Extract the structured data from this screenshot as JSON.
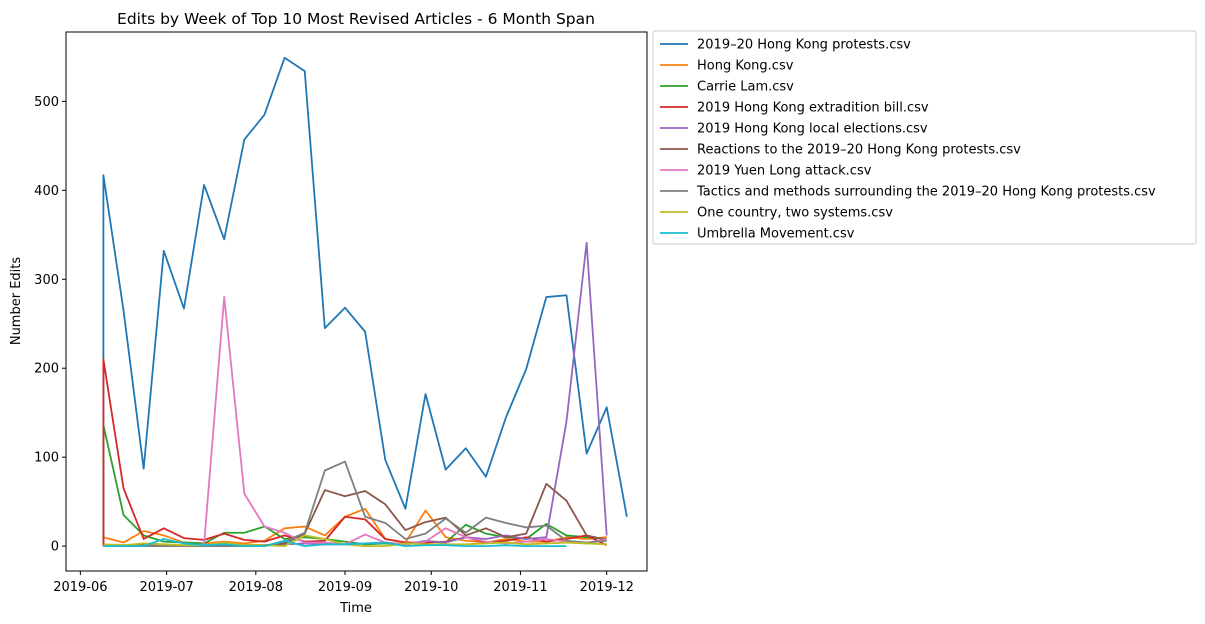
{
  "chart_data": {
    "type": "line",
    "title": "Edits by Week of Top 10 Most Revised Articles - 6 Month Span",
    "xlabel": "Time",
    "ylabel": "Number Edits",
    "xlim": [
      "2019-05-27",
      "2019-12-15"
    ],
    "ylim": [
      -28,
      578
    ],
    "x_ticks": [
      {
        "date": "2019-06-01",
        "label": "2019-06"
      },
      {
        "date": "2019-07-01",
        "label": "2019-07"
      },
      {
        "date": "2019-08-01",
        "label": "2019-08"
      },
      {
        "date": "2019-09-01",
        "label": "2019-09"
      },
      {
        "date": "2019-10-01",
        "label": "2019-10"
      },
      {
        "date": "2019-11-01",
        "label": "2019-11"
      },
      {
        "date": "2019-12-01",
        "label": "2019-12"
      }
    ],
    "y_ticks": [
      0,
      100,
      200,
      300,
      400,
      500
    ],
    "grid": false,
    "legend_position": "outside-right",
    "series": [
      {
        "name": "2019–20 Hong Kong protests.csv",
        "color": "#1f77b4",
        "points": [
          [
            "2019-06-09",
            0
          ],
          [
            "2019-06-09",
            417
          ],
          [
            "2019-06-16",
            265
          ],
          [
            "2019-06-23",
            87
          ],
          [
            "2019-06-30",
            332
          ],
          [
            "2019-07-07",
            267
          ],
          [
            "2019-07-14",
            406
          ],
          [
            "2019-07-21",
            345
          ],
          [
            "2019-07-28",
            457
          ],
          [
            "2019-08-04",
            485
          ],
          [
            "2019-08-11",
            549
          ],
          [
            "2019-08-18",
            534
          ],
          [
            "2019-08-25",
            245
          ],
          [
            "2019-09-01",
            268
          ],
          [
            "2019-09-08",
            241
          ],
          [
            "2019-09-15",
            97
          ],
          [
            "2019-09-22",
            42
          ],
          [
            "2019-09-29",
            171
          ],
          [
            "2019-10-06",
            86
          ],
          [
            "2019-10-13",
            110
          ],
          [
            "2019-10-20",
            78
          ],
          [
            "2019-10-27",
            145
          ],
          [
            "2019-11-03",
            199
          ],
          [
            "2019-11-10",
            280
          ],
          [
            "2019-11-17",
            282
          ],
          [
            "2019-11-24",
            104
          ],
          [
            "2019-12-01",
            156
          ],
          [
            "2019-12-08",
            33
          ]
        ]
      },
      {
        "name": "Hong Kong.csv",
        "color": "#ff7f0e",
        "points": [
          [
            "2019-06-09",
            10
          ],
          [
            "2019-06-16",
            4
          ],
          [
            "2019-06-23",
            17
          ],
          [
            "2019-06-30",
            12
          ],
          [
            "2019-07-07",
            4
          ],
          [
            "2019-07-14",
            3
          ],
          [
            "2019-07-21",
            5
          ],
          [
            "2019-07-28",
            3
          ],
          [
            "2019-08-04",
            6
          ],
          [
            "2019-08-11",
            20
          ],
          [
            "2019-08-18",
            22
          ],
          [
            "2019-08-25",
            12
          ],
          [
            "2019-09-01",
            33
          ],
          [
            "2019-09-08",
            42
          ],
          [
            "2019-09-15",
            8
          ],
          [
            "2019-09-22",
            4
          ],
          [
            "2019-09-29",
            40
          ],
          [
            "2019-10-06",
            10
          ],
          [
            "2019-10-13",
            6
          ],
          [
            "2019-10-20",
            4
          ],
          [
            "2019-10-27",
            8
          ],
          [
            "2019-11-03",
            5
          ],
          [
            "2019-11-10",
            5
          ],
          [
            "2019-11-17",
            10
          ],
          [
            "2019-11-24",
            8
          ],
          [
            "2019-12-01",
            10
          ]
        ]
      },
      {
        "name": "Carrie Lam.csv",
        "color": "#2ca02c",
        "points": [
          [
            "2019-06-09",
            0
          ],
          [
            "2019-06-09",
            136
          ],
          [
            "2019-06-16",
            35
          ],
          [
            "2019-06-23",
            12
          ],
          [
            "2019-06-30",
            5
          ],
          [
            "2019-07-07",
            4
          ],
          [
            "2019-07-14",
            3
          ],
          [
            "2019-07-21",
            15
          ],
          [
            "2019-07-28",
            15
          ],
          [
            "2019-08-04",
            22
          ],
          [
            "2019-08-11",
            8
          ],
          [
            "2019-08-18",
            10
          ],
          [
            "2019-08-25",
            8
          ],
          [
            "2019-09-01",
            5
          ],
          [
            "2019-09-08",
            2
          ],
          [
            "2019-09-15",
            3
          ],
          [
            "2019-09-22",
            2
          ],
          [
            "2019-09-29",
            5
          ],
          [
            "2019-10-06",
            4
          ],
          [
            "2019-10-13",
            24
          ],
          [
            "2019-10-20",
            14
          ],
          [
            "2019-10-27",
            10
          ],
          [
            "2019-11-03",
            8
          ],
          [
            "2019-11-10",
            25
          ],
          [
            "2019-11-17",
            12
          ],
          [
            "2019-11-24",
            10
          ],
          [
            "2019-12-01",
            8
          ]
        ]
      },
      {
        "name": "2019 Hong Kong extradition bill.csv",
        "color": "#d62728",
        "points": [
          [
            "2019-06-09",
            0
          ],
          [
            "2019-06-09",
            210
          ],
          [
            "2019-06-16",
            65
          ],
          [
            "2019-06-23",
            8
          ],
          [
            "2019-06-30",
            20
          ],
          [
            "2019-07-07",
            9
          ],
          [
            "2019-07-14",
            7
          ],
          [
            "2019-07-21",
            14
          ],
          [
            "2019-07-28",
            7
          ],
          [
            "2019-08-04",
            5
          ],
          [
            "2019-08-11",
            12
          ],
          [
            "2019-08-18",
            5
          ],
          [
            "2019-08-25",
            6
          ],
          [
            "2019-09-01",
            33
          ],
          [
            "2019-09-08",
            30
          ],
          [
            "2019-09-15",
            8
          ],
          [
            "2019-09-22",
            4
          ],
          [
            "2019-09-29",
            4
          ],
          [
            "2019-10-06",
            5
          ],
          [
            "2019-10-13",
            10
          ],
          [
            "2019-10-20",
            4
          ],
          [
            "2019-10-27",
            6
          ],
          [
            "2019-11-03",
            10
          ],
          [
            "2019-11-10",
            5
          ],
          [
            "2019-11-17",
            8
          ],
          [
            "2019-11-24",
            12
          ],
          [
            "2019-12-01",
            1
          ]
        ]
      },
      {
        "name": "2019 Hong Kong local elections.csv",
        "color": "#9467bd",
        "points": [
          [
            "2019-06-09",
            0
          ],
          [
            "2019-06-16",
            1
          ],
          [
            "2019-06-23",
            0
          ],
          [
            "2019-06-30",
            1
          ],
          [
            "2019-07-07",
            1
          ],
          [
            "2019-07-14",
            0
          ],
          [
            "2019-07-21",
            2
          ],
          [
            "2019-07-28",
            1
          ],
          [
            "2019-08-04",
            1
          ],
          [
            "2019-08-11",
            2
          ],
          [
            "2019-08-18",
            3
          ],
          [
            "2019-08-25",
            2
          ],
          [
            "2019-09-01",
            2
          ],
          [
            "2019-09-08",
            3
          ],
          [
            "2019-09-15",
            4
          ],
          [
            "2019-09-22",
            2
          ],
          [
            "2019-09-29",
            6
          ],
          [
            "2019-10-06",
            4
          ],
          [
            "2019-10-13",
            10
          ],
          [
            "2019-10-20",
            8
          ],
          [
            "2019-10-27",
            12
          ],
          [
            "2019-11-03",
            8
          ],
          [
            "2019-11-10",
            10
          ],
          [
            "2019-11-17",
            140
          ],
          [
            "2019-11-24",
            341
          ],
          [
            "2019-12-01",
            12
          ]
        ]
      },
      {
        "name": "Reactions to the 2019–20 Hong Kong protests.csv",
        "color": "#8c564b",
        "points": [
          [
            "2019-06-09",
            0
          ],
          [
            "2019-06-16",
            0
          ],
          [
            "2019-06-23",
            1
          ],
          [
            "2019-06-30",
            1
          ],
          [
            "2019-07-07",
            0
          ],
          [
            "2019-07-14",
            0
          ],
          [
            "2019-07-21",
            1
          ],
          [
            "2019-07-28",
            1
          ],
          [
            "2019-08-04",
            1
          ],
          [
            "2019-08-11",
            3
          ],
          [
            "2019-08-18",
            14
          ],
          [
            "2019-08-25",
            63
          ],
          [
            "2019-09-01",
            56
          ],
          [
            "2019-09-08",
            62
          ],
          [
            "2019-09-15",
            47
          ],
          [
            "2019-09-22",
            18
          ],
          [
            "2019-09-29",
            27
          ],
          [
            "2019-10-06",
            32
          ],
          [
            "2019-10-13",
            12
          ],
          [
            "2019-10-20",
            20
          ],
          [
            "2019-10-27",
            10
          ],
          [
            "2019-11-03",
            14
          ],
          [
            "2019-11-10",
            70
          ],
          [
            "2019-11-17",
            51
          ],
          [
            "2019-11-24",
            12
          ],
          [
            "2019-12-01",
            7
          ]
        ]
      },
      {
        "name": "2019 Yuen Long attack.csv",
        "color": "#e377c2",
        "points": [
          [
            "2019-06-09",
            0
          ],
          [
            "2019-06-16",
            0
          ],
          [
            "2019-06-23",
            0
          ],
          [
            "2019-06-30",
            0
          ],
          [
            "2019-07-07",
            0
          ],
          [
            "2019-07-14",
            2
          ],
          [
            "2019-07-21",
            280
          ],
          [
            "2019-07-28",
            59
          ],
          [
            "2019-08-04",
            22
          ],
          [
            "2019-08-11",
            15
          ],
          [
            "2019-08-18",
            4
          ],
          [
            "2019-08-25",
            4
          ],
          [
            "2019-09-01",
            2
          ],
          [
            "2019-09-08",
            13
          ],
          [
            "2019-09-15",
            4
          ],
          [
            "2019-09-22",
            2
          ],
          [
            "2019-09-29",
            5
          ],
          [
            "2019-10-06",
            20
          ],
          [
            "2019-10-13",
            10
          ],
          [
            "2019-10-20",
            5
          ],
          [
            "2019-10-27",
            3
          ],
          [
            "2019-11-03",
            5
          ],
          [
            "2019-11-10",
            8
          ],
          [
            "2019-11-17",
            5
          ],
          [
            "2019-11-24",
            3
          ],
          [
            "2019-12-01",
            8
          ]
        ]
      },
      {
        "name": "Tactics and methods surrounding the 2019–20 Hong Kong protests.csv",
        "color": "#7f7f7f",
        "points": [
          [
            "2019-06-09",
            0
          ],
          [
            "2019-06-16",
            0
          ],
          [
            "2019-06-23",
            0
          ],
          [
            "2019-06-30",
            0
          ],
          [
            "2019-07-07",
            0
          ],
          [
            "2019-07-14",
            0
          ],
          [
            "2019-07-21",
            0
          ],
          [
            "2019-07-28",
            0
          ],
          [
            "2019-08-04",
            0
          ],
          [
            "2019-08-11",
            5
          ],
          [
            "2019-08-18",
            15
          ],
          [
            "2019-08-25",
            85
          ],
          [
            "2019-09-01",
            95
          ],
          [
            "2019-09-08",
            33
          ],
          [
            "2019-09-15",
            26
          ],
          [
            "2019-09-22",
            8
          ],
          [
            "2019-09-29",
            14
          ],
          [
            "2019-10-06",
            31
          ],
          [
            "2019-10-13",
            15
          ],
          [
            "2019-10-20",
            32
          ],
          [
            "2019-10-27",
            26
          ],
          [
            "2019-11-03",
            21
          ],
          [
            "2019-11-10",
            23
          ],
          [
            "2019-11-17",
            6
          ],
          [
            "2019-11-24",
            4
          ],
          [
            "2019-12-01",
            6
          ]
        ]
      },
      {
        "name": "One country, two systems.csv",
        "color": "#bcbd22",
        "points": [
          [
            "2019-06-09",
            2
          ],
          [
            "2019-06-16",
            1
          ],
          [
            "2019-06-23",
            3
          ],
          [
            "2019-06-30",
            2
          ],
          [
            "2019-07-07",
            1
          ],
          [
            "2019-07-14",
            1
          ],
          [
            "2019-07-21",
            4
          ],
          [
            "2019-07-28",
            1
          ],
          [
            "2019-08-04",
            1
          ],
          [
            "2019-08-11",
            0
          ],
          [
            "2019-08-18",
            12
          ],
          [
            "2019-08-25",
            8
          ],
          [
            "2019-09-01",
            2
          ],
          [
            "2019-09-08",
            0
          ],
          [
            "2019-09-15",
            0
          ],
          [
            "2019-09-22",
            3
          ],
          [
            "2019-09-29",
            2
          ],
          [
            "2019-10-06",
            2
          ],
          [
            "2019-10-13",
            2
          ],
          [
            "2019-10-20",
            3
          ],
          [
            "2019-10-27",
            4
          ],
          [
            "2019-11-03",
            2
          ],
          [
            "2019-11-10",
            3
          ],
          [
            "2019-11-17",
            4
          ],
          [
            "2019-11-24",
            3
          ],
          [
            "2019-12-01",
            2
          ]
        ]
      },
      {
        "name": "Umbrella Movement.csv",
        "color": "#17becf",
        "points": [
          [
            "2019-06-09",
            0
          ],
          [
            "2019-06-16",
            0
          ],
          [
            "2019-06-23",
            0
          ],
          [
            "2019-06-30",
            8
          ],
          [
            "2019-07-07",
            3
          ],
          [
            "2019-07-14",
            1
          ],
          [
            "2019-07-21",
            2
          ],
          [
            "2019-07-28",
            0
          ],
          [
            "2019-08-04",
            0
          ],
          [
            "2019-08-11",
            6
          ],
          [
            "2019-08-18",
            0
          ],
          [
            "2019-08-25",
            2
          ],
          [
            "2019-09-01",
            2
          ],
          [
            "2019-09-08",
            3
          ],
          [
            "2019-09-15",
            4
          ],
          [
            "2019-09-22",
            0
          ],
          [
            "2019-09-29",
            1
          ],
          [
            "2019-10-06",
            1
          ],
          [
            "2019-10-13",
            0
          ],
          [
            "2019-10-20",
            0
          ],
          [
            "2019-10-27",
            1
          ],
          [
            "2019-11-03",
            0
          ],
          [
            "2019-11-10",
            0
          ],
          [
            "2019-11-17",
            0
          ]
        ]
      }
    ]
  }
}
